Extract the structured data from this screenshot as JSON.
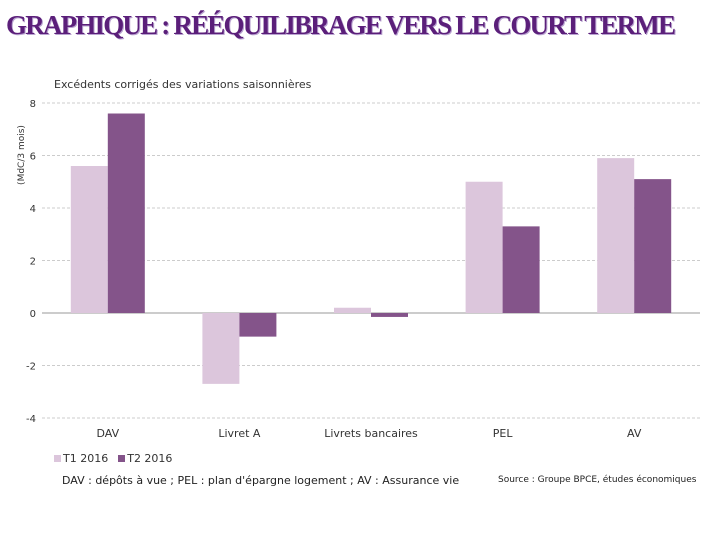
{
  "title": "GRAPHIQUE : RÉÉQUILIBRAGE VERS LE COURT TERME",
  "note": "DAV : dépôts à vue ; PEL : plan d'épargne logement ; AV : Assurance vie",
  "source": "Source : Groupe BPCE, études économiques",
  "chart_data": {
    "type": "bar",
    "title": "Excédents corrigés des variations saisonnières",
    "ylabel": "(MdC/3 mois)",
    "xlabel": "",
    "categories": [
      "DAV",
      "Livret A",
      "Livrets bancaires",
      "PEL",
      "AV"
    ],
    "series": [
      {
        "name": "T1 2016",
        "color": "#dcc6dc",
        "values": [
          5.6,
          -2.7,
          0.2,
          5.0,
          5.9
        ]
      },
      {
        "name": "T2 2016",
        "color": "#84548a",
        "values": [
          7.6,
          -0.9,
          -0.15,
          3.3,
          5.1
        ]
      }
    ],
    "ylim": [
      -4,
      8
    ],
    "yticks": [
      -4,
      -2,
      0,
      2,
      4,
      6,
      8
    ],
    "grid": "horizontal dashed",
    "legend": "bottom-left"
  }
}
